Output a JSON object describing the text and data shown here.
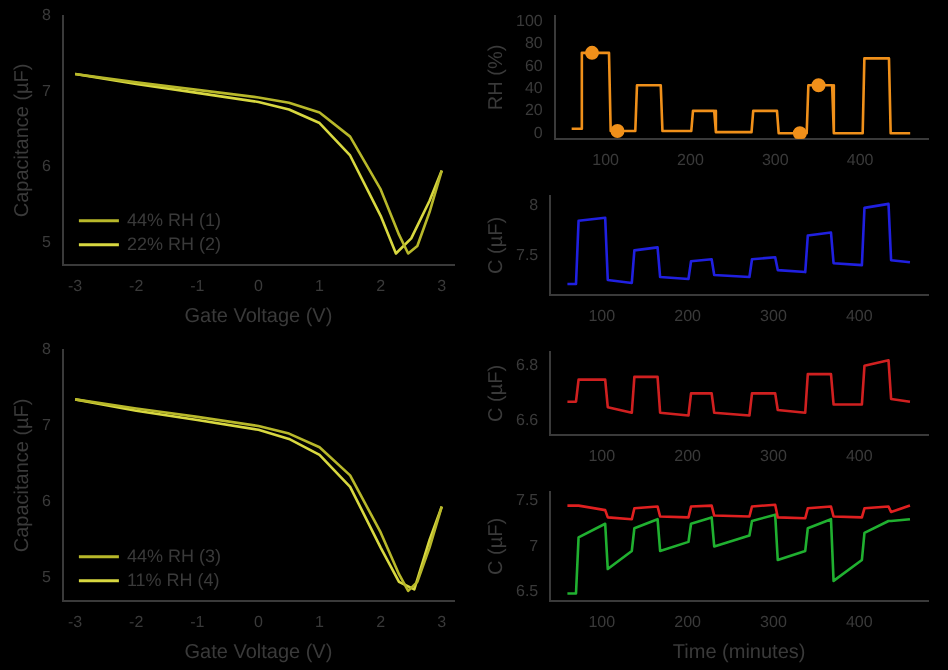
{
  "chart_data": [
    {
      "type": "line",
      "xlabel": "Gate Voltage (V)",
      "ylabel": "Capacitance (µF)",
      "xlim": [
        -3.2,
        3.2
      ],
      "xticks": [
        -3,
        -2,
        -1,
        0,
        1,
        2,
        3
      ],
      "ylim": [
        4.7,
        8
      ],
      "yticks": [
        5,
        6,
        7,
        8
      ],
      "legend": "bottom left",
      "series": [
        {
          "name": "44% RH (1)",
          "color": "#b8b82a",
          "x": [
            -3,
            -2,
            -1,
            0,
            0.5,
            1,
            1.5,
            2,
            2.3,
            2.45,
            2.6,
            2.8,
            3
          ],
          "values": [
            7.23,
            7.12,
            7.02,
            6.92,
            6.85,
            6.72,
            6.4,
            5.7,
            5.1,
            4.85,
            4.95,
            5.4,
            5.95
          ]
        },
        {
          "name": "22% RH (2)",
          "color": "#d8d840",
          "x": [
            -3,
            -2,
            -1,
            0,
            0.5,
            1,
            1.5,
            2,
            2.25,
            2.5,
            2.8,
            3
          ],
          "values": [
            7.23,
            7.1,
            6.98,
            6.86,
            6.76,
            6.58,
            6.15,
            5.35,
            4.85,
            5.05,
            5.55,
            5.95
          ]
        }
      ]
    },
    {
      "type": "line",
      "xlabel": "Gate Voltage (V)",
      "ylabel": "Capacitance (µF)",
      "xlim": [
        -3.2,
        3.2
      ],
      "xticks": [
        -3,
        -2,
        -1,
        0,
        1,
        2,
        3
      ],
      "ylim": [
        4.7,
        8
      ],
      "yticks": [
        5,
        6,
        7,
        8
      ],
      "legend": "bottom left",
      "series": [
        {
          "name": "44% RH (3)",
          "color": "#b8b82a",
          "x": [
            -3,
            -2,
            -1,
            0,
            0.5,
            1,
            1.5,
            2,
            2.3,
            2.45,
            2.6,
            2.8,
            3
          ],
          "values": [
            7.35,
            7.23,
            7.12,
            7.0,
            6.9,
            6.72,
            6.35,
            5.6,
            5.05,
            4.83,
            4.95,
            5.4,
            5.94
          ]
        },
        {
          "name": "11% RH (4)",
          "color": "#d8d840",
          "x": [
            -3,
            -2,
            -1,
            0,
            0.5,
            1,
            1.5,
            2,
            2.3,
            2.55,
            2.8,
            3
          ],
          "values": [
            7.35,
            7.2,
            7.08,
            6.95,
            6.83,
            6.62,
            6.2,
            5.4,
            4.95,
            4.85,
            5.5,
            5.94
          ]
        }
      ]
    },
    {
      "type": "line",
      "ylabel": "RH (%)",
      "xlim": [
        40,
        480
      ],
      "xticks": [
        100,
        200,
        300,
        400
      ],
      "ylim": [
        -5,
        105
      ],
      "yticks": [
        0,
        20,
        40,
        60,
        80,
        100
      ],
      "series": [
        {
          "color": "#f0901a",
          "x": [
            60,
            70,
            72,
            104,
            106,
            135,
            137,
            165,
            167,
            201,
            203,
            228,
            230,
            272,
            274,
            302,
            304,
            337,
            339,
            367,
            369,
            403,
            405,
            434,
            436,
            459
          ],
          "values": [
            4,
            4,
            72,
            72,
            2,
            2,
            43,
            43,
            2,
            2,
            20,
            20,
            1,
            1,
            20,
            20,
            0,
            0,
            43,
            43,
            0,
            0,
            67,
            67,
            0,
            0
          ]
        },
        {
          "type": "scatter",
          "color": "#f0901a",
          "marker": "circle",
          "x": [
            84,
            114,
            329,
            351
          ],
          "values": [
            72,
            2,
            0,
            43
          ]
        }
      ]
    },
    {
      "type": "line",
      "ylabel": "C (µF)",
      "xlim": [
        40,
        480
      ],
      "xticks": [
        100,
        200,
        300,
        400
      ],
      "ylim": [
        7.1,
        8.1
      ],
      "yticks": [
        7.5,
        8.0
      ],
      "series": [
        {
          "color": "#2020e0",
          "x": [
            60,
            70,
            73,
            104,
            107,
            135,
            138,
            165,
            168,
            201,
            204,
            228,
            231,
            272,
            275,
            302,
            305,
            337,
            340,
            367,
            370,
            403,
            406,
            434,
            437,
            459
          ],
          "values": [
            7.21,
            7.21,
            7.85,
            7.88,
            7.25,
            7.22,
            7.55,
            7.58,
            7.28,
            7.26,
            7.44,
            7.46,
            7.3,
            7.28,
            7.46,
            7.48,
            7.35,
            7.33,
            7.7,
            7.73,
            7.42,
            7.4,
            7.98,
            8.02,
            7.45,
            7.43
          ]
        }
      ]
    },
    {
      "type": "line",
      "ylabel": "C (µF)",
      "xlim": [
        40,
        480
      ],
      "xticks": [
        100,
        200,
        300,
        400
      ],
      "ylim": [
        6.55,
        6.85
      ],
      "yticks": [
        6.6,
        6.8
      ],
      "series": [
        {
          "color": "#d02020",
          "x": [
            60,
            70,
            73,
            104,
            107,
            135,
            138,
            165,
            168,
            201,
            204,
            228,
            231,
            272,
            275,
            302,
            305,
            337,
            340,
            367,
            370,
            403,
            406,
            434,
            437,
            459
          ],
          "values": [
            6.67,
            6.67,
            6.75,
            6.75,
            6.65,
            6.63,
            6.76,
            6.76,
            6.63,
            6.62,
            6.7,
            6.7,
            6.63,
            6.62,
            6.7,
            6.7,
            6.64,
            6.63,
            6.77,
            6.77,
            6.66,
            6.66,
            6.8,
            6.82,
            6.68,
            6.67
          ]
        }
      ]
    },
    {
      "type": "line",
      "xlabel": "Time (minutes)",
      "ylabel": "C (µF)",
      "xlim": [
        40,
        480
      ],
      "xticks": [
        100,
        200,
        300,
        400
      ],
      "ylim": [
        6.4,
        7.6
      ],
      "yticks": [
        6.5,
        7.0,
        7.5
      ],
      "series": [
        {
          "color": "#e02020",
          "x": [
            60,
            70,
            73,
            104,
            107,
            135,
            138,
            165,
            168,
            201,
            204,
            228,
            231,
            272,
            275,
            302,
            305,
            337,
            340,
            367,
            370,
            403,
            406,
            434,
            437,
            459
          ],
          "values": [
            7.45,
            7.45,
            7.45,
            7.4,
            7.32,
            7.3,
            7.42,
            7.44,
            7.33,
            7.32,
            7.44,
            7.45,
            7.34,
            7.33,
            7.44,
            7.46,
            7.32,
            7.31,
            7.42,
            7.44,
            7.33,
            7.32,
            7.42,
            7.44,
            7.38,
            7.45
          ]
        },
        {
          "color": "#20b030",
          "x": [
            60,
            70,
            73,
            104,
            107,
            135,
            138,
            165,
            168,
            201,
            204,
            228,
            231,
            272,
            275,
            302,
            305,
            337,
            340,
            367,
            370,
            403,
            406,
            434,
            437,
            459
          ],
          "values": [
            6.48,
            6.48,
            7.1,
            7.25,
            6.75,
            6.95,
            7.2,
            7.3,
            6.95,
            7.05,
            7.25,
            7.32,
            7.0,
            7.12,
            7.28,
            7.35,
            6.85,
            6.95,
            7.2,
            7.3,
            6.62,
            6.85,
            7.15,
            7.28,
            7.28,
            7.3
          ]
        }
      ]
    }
  ]
}
